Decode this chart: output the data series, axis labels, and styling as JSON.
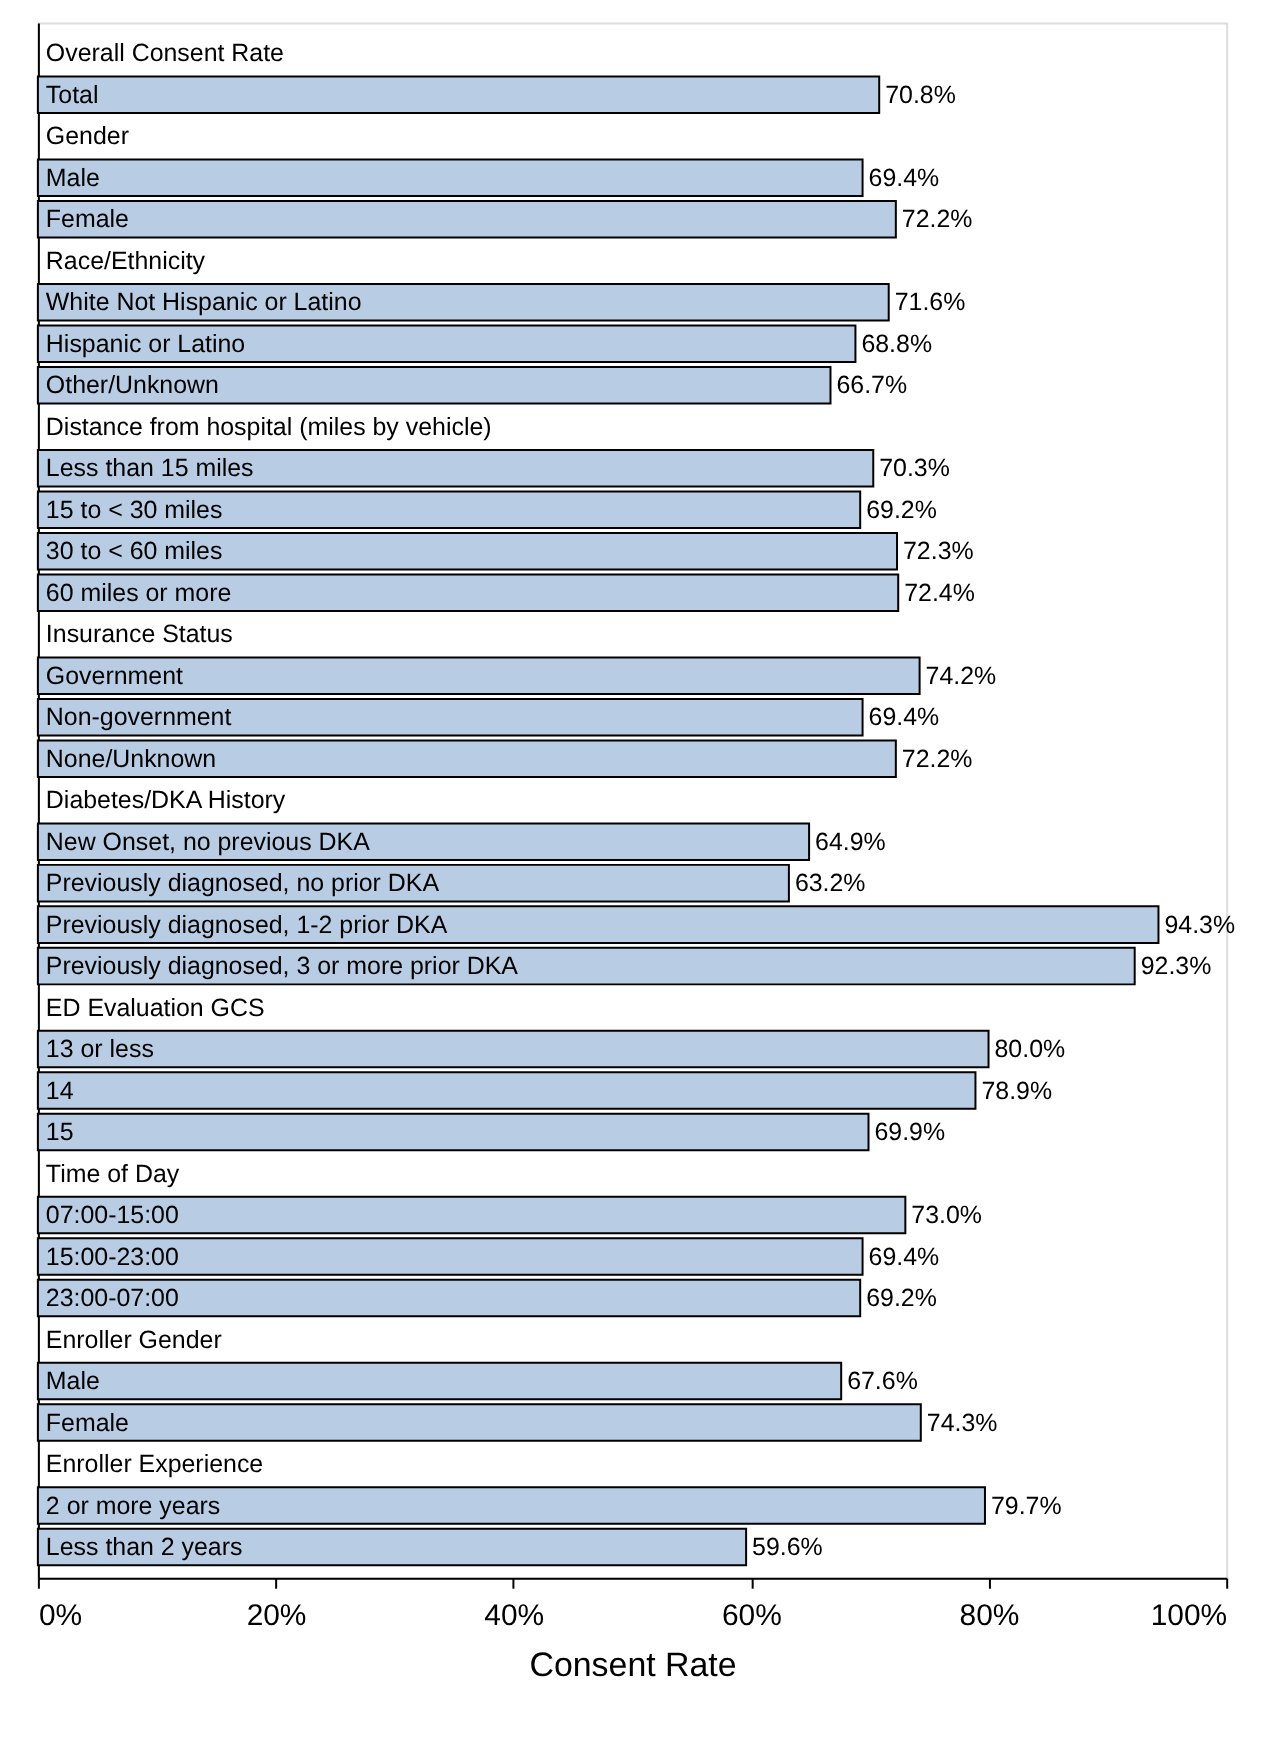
{
  "chart_data": {
    "type": "bar",
    "orientation": "horizontal",
    "xlabel": "Consent Rate",
    "categories": [
      "Overall Consent Rate",
      "Total",
      "Gender",
      "Male",
      "Female",
      "Race/Ethnicity",
      "White Not Hispanic or Latino",
      "Hispanic or Latino",
      "Other/Unknown",
      "Distance from hospital (miles by vehicle)",
      "Less than 15 miles",
      "15 to < 30 miles",
      "30 to < 60 miles",
      "60 miles or more",
      "Insurance Status",
      "Government",
      "Non-government",
      "None/Unknown",
      "Diabetes/DKA History",
      "New Onset, no previous DKA",
      "Previously diagnosed, no prior DKA",
      "Previously diagnosed, 1-2 prior DKA",
      "Previously diagnosed, 3 or more prior DKA",
      "ED Evaluation GCS",
      "13 or less",
      "14",
      "15",
      "Time of Day",
      "07:00-15:00",
      "15:00-23:00",
      "23:00-07:00",
      "Enroller Gender",
      "Male",
      "Female",
      "Enroller Experience",
      "2 or more years",
      "Less than 2 years"
    ],
    "values": [
      null,
      70.8,
      null,
      69.4,
      72.2,
      null,
      71.6,
      68.8,
      66.7,
      null,
      70.3,
      69.2,
      72.3,
      72.4,
      null,
      74.2,
      69.4,
      72.2,
      null,
      64.9,
      63.2,
      94.3,
      92.3,
      null,
      80.0,
      78.9,
      69.9,
      null,
      73.0,
      69.4,
      69.2,
      null,
      67.6,
      74.3,
      null,
      79.7,
      59.6
    ],
    "value_labels": [
      null,
      "70.8%",
      null,
      "69.4%",
      "72.2%",
      null,
      "71.6%",
      "68.8%",
      "66.7%",
      null,
      "70.3%",
      "69.2%",
      "72.3%",
      "72.4%",
      null,
      "74.2%",
      "69.4%",
      "72.2%",
      null,
      "64.9%",
      "63.2%",
      "94.3%",
      "92.3%",
      null,
      "80.0%",
      "78.9%",
      "69.9%",
      null,
      "73.0%",
      "69.4%",
      "69.2%",
      null,
      "67.6%",
      "74.3%",
      null,
      "79.7%",
      "59.6%"
    ],
    "color": "#b8cce4",
    "xlim": [
      0,
      100
    ],
    "xticks": [
      {
        "value": 0,
        "label": "0%"
      },
      {
        "value": 20,
        "label": "20%"
      },
      {
        "value": 40,
        "label": "40%"
      },
      {
        "value": 60,
        "label": "60%"
      },
      {
        "value": 80,
        "label": "80%"
      },
      {
        "value": 100,
        "label": "100%"
      }
    ],
    "tick_labels": "x",
    "grid": false
  }
}
